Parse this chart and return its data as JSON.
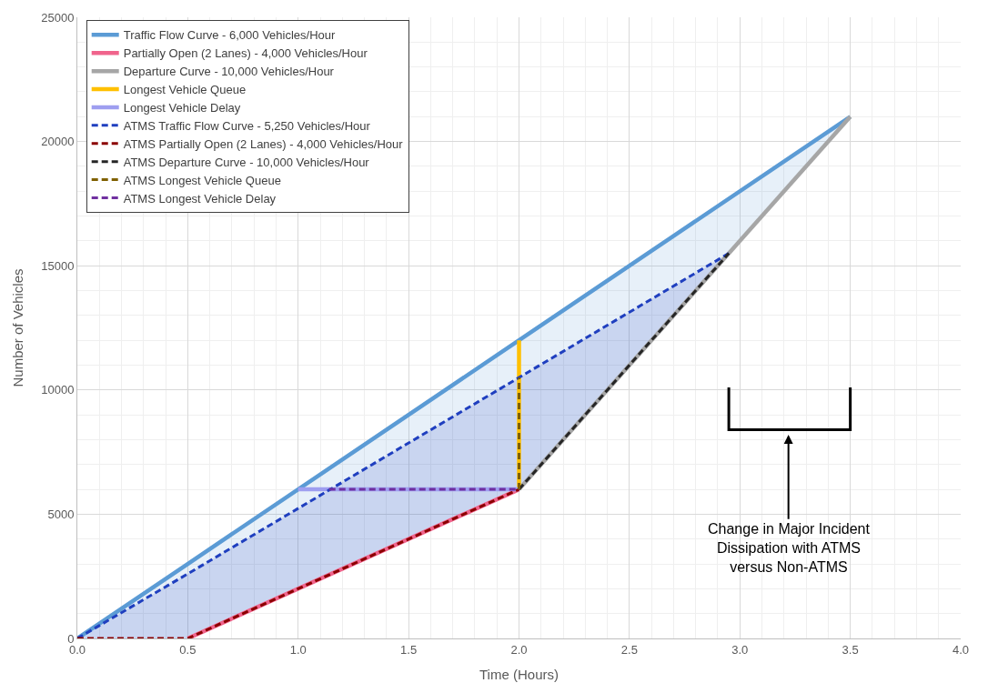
{
  "chart_data": {
    "type": "line",
    "xlabel": "Time (Hours)",
    "ylabel": "Number of Vehicles",
    "xlim": [
      0,
      4
    ],
    "xticks": [
      {
        "value": 0,
        "label": "0.0"
      },
      {
        "value": 0.5,
        "label": "0.5"
      },
      {
        "value": 1,
        "label": "1.0"
      },
      {
        "value": 1.5,
        "label": "1.5"
      },
      {
        "value": 2,
        "label": "2.0"
      },
      {
        "value": 2.5,
        "label": "2.5"
      },
      {
        "value": 3,
        "label": "3.0"
      },
      {
        "value": 3.5,
        "label": "3.5"
      },
      {
        "value": 4,
        "label": "4.0"
      }
    ],
    "ylim": [
      0,
      25000
    ],
    "yticks": [
      0,
      5000,
      10000,
      15000,
      20000,
      25000
    ],
    "grid": true,
    "legend": "top left",
    "marker": "none",
    "series": [
      {
        "name": "Traffic Flow Curve - 6,000 Vehicles/Hour",
        "color": "#5b9bd5",
        "line_style": "solid",
        "x": [
          0,
          0.5,
          2,
          3.5
        ],
        "values": [
          0,
          3000,
          12000,
          21000
        ],
        "lower": [
          0,
          0,
          6000,
          21000
        ],
        "upper": [
          0,
          3000,
          12000,
          21000
        ]
      },
      {
        "name": "Partially Open (2 Lanes) - 4,000 Vehicles/Hour",
        "color": "#f0648c",
        "line_style": "solid",
        "x": [
          0.5,
          2
        ],
        "values": [
          0,
          6000
        ]
      },
      {
        "name": "Departure Curve - 10,000 Vehicles/Hour",
        "color": "#a6a6a6",
        "line_style": "solid",
        "x": [
          2,
          3.5
        ],
        "values": [
          6000,
          21000
        ]
      },
      {
        "name": "Longest Vehicle Queue",
        "color": "#ffc000",
        "line_style": "solid",
        "x": [
          2,
          2
        ],
        "values": [
          6000,
          12000
        ]
      },
      {
        "name": "Longest Vehicle Delay",
        "color": "#9e9ef0",
        "line_style": "solid",
        "x": [
          1,
          2
        ],
        "values": [
          6000,
          6000
        ]
      },
      {
        "name": "ATMS Traffic Flow Curve - 5,250 Vehicles/Hour",
        "color": "#1f3fbf",
        "line_style": "dashed",
        "x": [
          0,
          0.5,
          2,
          2.95
        ],
        "values": [
          0,
          2600,
          10500,
          15500
        ],
        "lower": [
          0,
          0,
          6000,
          15500
        ],
        "upper": [
          0,
          2600,
          10500,
          15500
        ]
      },
      {
        "name": "ATMS Partially Open (2 Lanes) - 4,000 Vehicles/Hour",
        "color": "#8b0000",
        "line_style": "dashed",
        "x": [
          0,
          0.5,
          2
        ],
        "values": [
          0,
          0,
          6000
        ]
      },
      {
        "name": "ATMS Departure Curve - 10,000 Vehicles/Hour",
        "color": "#262626",
        "line_style": "dashed",
        "x": [
          2,
          2.95
        ],
        "values": [
          6000,
          15500
        ]
      },
      {
        "name": "ATMS Longest Vehicle Queue",
        "color": "#7f6000",
        "line_style": "dashed",
        "x": [
          2,
          2
        ],
        "values": [
          6000,
          10500
        ]
      },
      {
        "name": "ATMS Longest Vehicle Delay",
        "color": "#7030a0",
        "line_style": "dashed",
        "x": [
          1.14,
          2
        ],
        "values": [
          6000,
          6000
        ]
      }
    ],
    "annotations": [
      "Change in Major Incident\nDissipation with ATMS\nversus Non-ATMS"
    ]
  }
}
